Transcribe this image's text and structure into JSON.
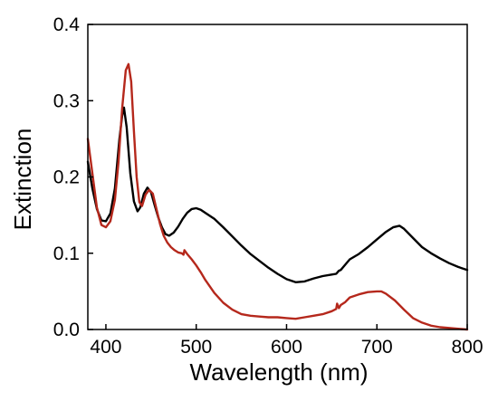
{
  "chart_data": {
    "type": "line",
    "title": "",
    "xlabel": "Wavelength (nm)",
    "ylabel": "Extinction",
    "xlim": [
      380,
      800
    ],
    "ylim": [
      0.0,
      0.4
    ],
    "xticks": [
      400,
      500,
      600,
      700,
      800
    ],
    "xtick_labels": [
      "400",
      "500",
      "600",
      "700",
      "800"
    ],
    "yticks": [
      0.0,
      0.1,
      0.2,
      0.3,
      0.4
    ],
    "ytick_labels": [
      "0.0",
      "0.1",
      "0.2",
      "0.3",
      "0.4"
    ],
    "grid": false,
    "legend": "none",
    "series": [
      {
        "color": "#000000",
        "x": [
          380,
          385,
          390,
          395,
          400,
          405,
          410,
          415,
          418,
          420,
          423,
          427,
          431,
          435,
          438,
          442,
          446,
          450,
          454,
          458,
          462,
          466,
          470,
          475,
          480,
          485,
          490,
          495,
          500,
          505,
          510,
          520,
          530,
          540,
          550,
          560,
          570,
          580,
          590,
          600,
          610,
          620,
          630,
          640,
          650,
          655,
          658,
          660,
          665,
          670,
          680,
          690,
          700,
          710,
          718,
          725,
          730,
          740,
          750,
          760,
          770,
          780,
          790,
          800
        ],
        "y": [
          0.22,
          0.185,
          0.158,
          0.143,
          0.142,
          0.152,
          0.185,
          0.25,
          0.28,
          0.291,
          0.265,
          0.205,
          0.168,
          0.155,
          0.16,
          0.178,
          0.186,
          0.18,
          0.163,
          0.147,
          0.134,
          0.125,
          0.123,
          0.127,
          0.135,
          0.145,
          0.153,
          0.158,
          0.159,
          0.157,
          0.153,
          0.145,
          0.134,
          0.122,
          0.11,
          0.099,
          0.09,
          0.081,
          0.073,
          0.066,
          0.062,
          0.063,
          0.067,
          0.07,
          0.072,
          0.073,
          0.077,
          0.078,
          0.085,
          0.092,
          0.099,
          0.108,
          0.118,
          0.128,
          0.134,
          0.136,
          0.132,
          0.12,
          0.108,
          0.1,
          0.093,
          0.087,
          0.082,
          0.078
        ]
      },
      {
        "color": "#b5281c",
        "x": [
          380,
          385,
          390,
          395,
          400,
          405,
          410,
          414,
          418,
          422,
          425,
          428,
          431,
          434,
          437,
          440,
          444,
          448,
          452,
          456,
          460,
          464,
          468,
          472,
          476,
          480,
          484,
          486,
          487,
          490,
          495,
          500,
          505,
          510,
          520,
          530,
          540,
          550,
          560,
          570,
          580,
          590,
          600,
          610,
          620,
          630,
          640,
          650,
          655,
          656,
          658,
          660,
          665,
          670,
          680,
          690,
          700,
          705,
          710,
          720,
          730,
          740,
          750,
          760,
          770,
          780,
          790,
          800
        ],
        "y": [
          0.25,
          0.205,
          0.16,
          0.137,
          0.134,
          0.142,
          0.17,
          0.22,
          0.29,
          0.34,
          0.348,
          0.325,
          0.26,
          0.2,
          0.167,
          0.162,
          0.177,
          0.183,
          0.178,
          0.158,
          0.138,
          0.123,
          0.114,
          0.108,
          0.104,
          0.101,
          0.1,
          0.098,
          0.104,
          0.099,
          0.092,
          0.084,
          0.075,
          0.065,
          0.048,
          0.035,
          0.026,
          0.02,
          0.018,
          0.017,
          0.016,
          0.016,
          0.015,
          0.014,
          0.016,
          0.018,
          0.02,
          0.024,
          0.027,
          0.034,
          0.028,
          0.032,
          0.036,
          0.042,
          0.046,
          0.049,
          0.05,
          0.05,
          0.047,
          0.038,
          0.026,
          0.015,
          0.009,
          0.005,
          0.003,
          0.002,
          0.001,
          0.0
        ]
      }
    ]
  }
}
